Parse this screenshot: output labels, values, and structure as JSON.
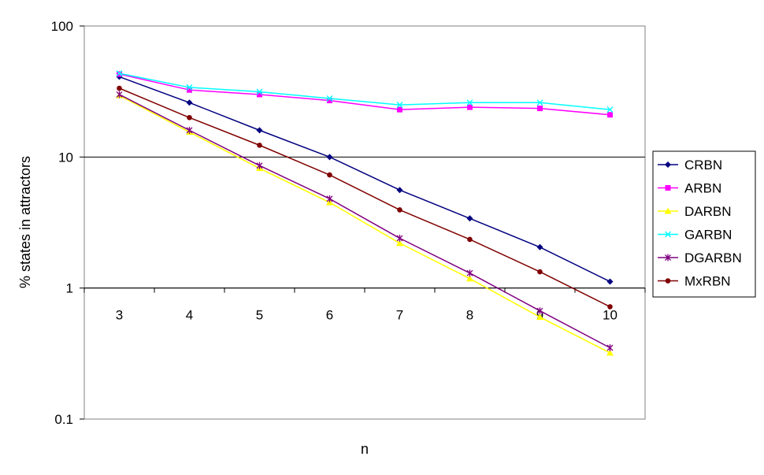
{
  "chart_data": {
    "type": "line",
    "xlabel": "n",
    "ylabel": "% states in attractors",
    "y_scale": "log",
    "ylim": [
      0.1,
      100
    ],
    "y_ticks": [
      "0.1",
      "1",
      "10",
      "100"
    ],
    "x": [
      3,
      4,
      5,
      6,
      7,
      8,
      9,
      10
    ],
    "x_tick_labels": [
      "3",
      "4",
      "5",
      "6",
      "7",
      "8",
      "9",
      "10"
    ],
    "gridlines": "horizontal major",
    "legend_position": "right",
    "series": [
      {
        "name": "CRBN",
        "color": "#000080",
        "marker": "diamond",
        "values": [
          41,
          26,
          16,
          10,
          5.6,
          3.4,
          2.05,
          1.12
        ]
      },
      {
        "name": "ARBN",
        "color": "#FF00FF",
        "marker": "square",
        "values": [
          43,
          32.5,
          30,
          27,
          23,
          24,
          23.5,
          21
        ]
      },
      {
        "name": "DARBN",
        "color": "#FFFF00",
        "marker": "triangle",
        "values": [
          29.5,
          15.5,
          8.2,
          4.5,
          2.2,
          1.18,
          0.6,
          0.32
        ]
      },
      {
        "name": "GARBN",
        "color": "#00FFFF",
        "marker": "x",
        "values": [
          43.5,
          34,
          31.5,
          28,
          25,
          26,
          26,
          23
        ]
      },
      {
        "name": "DGARBN",
        "color": "#800080",
        "marker": "star",
        "values": [
          30,
          16,
          8.6,
          4.8,
          2.4,
          1.3,
          0.67,
          0.35
        ]
      },
      {
        "name": "MxRBN",
        "color": "#800000",
        "marker": "circle",
        "values": [
          33.5,
          20,
          12.3,
          7.3,
          3.95,
          2.35,
          1.33,
          0.72
        ]
      }
    ]
  }
}
